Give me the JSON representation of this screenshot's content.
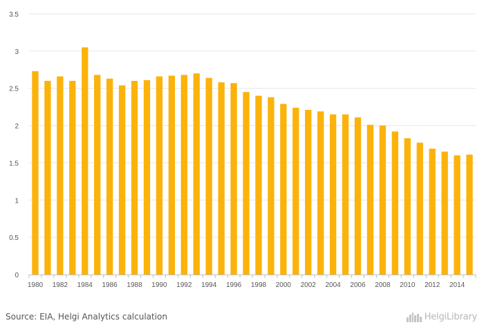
{
  "chart_data": {
    "type": "bar",
    "x": [
      1980,
      1981,
      1982,
      1983,
      1984,
      1985,
      1986,
      1987,
      1988,
      1989,
      1990,
      1991,
      1992,
      1993,
      1994,
      1995,
      1996,
      1997,
      1998,
      1999,
      2000,
      2001,
      2002,
      2003,
      2004,
      2005,
      2006,
      2007,
      2008,
      2009,
      2010,
      2011,
      2012,
      2013,
      2014,
      2015
    ],
    "values": [
      2.73,
      2.6,
      2.66,
      2.6,
      3.05,
      2.68,
      2.63,
      2.54,
      2.6,
      2.61,
      2.66,
      2.67,
      2.68,
      2.7,
      2.64,
      2.58,
      2.57,
      2.45,
      2.4,
      2.38,
      2.29,
      2.24,
      2.21,
      2.19,
      2.15,
      2.15,
      2.11,
      2.01,
      2.0,
      1.92,
      1.83,
      1.77,
      1.69,
      1.65,
      1.6,
      1.61
    ],
    "x_tick_labels": [
      "1980",
      "1982",
      "1984",
      "1986",
      "1988",
      "1990",
      "1992",
      "1994",
      "1996",
      "1998",
      "2000",
      "2002",
      "2004",
      "2006",
      "2008",
      "2010",
      "2012",
      "2014"
    ],
    "y_ticks": [
      0,
      0.5,
      1,
      1.5,
      2,
      2.5,
      3,
      3.5
    ],
    "y_tick_labels": [
      "0",
      "0.5",
      "1",
      "1.5",
      "2",
      "2.5",
      "3",
      "3.5"
    ],
    "ylim": [
      0,
      3.5
    ],
    "grid": true,
    "title": "",
    "xlabel": "",
    "ylabel": "",
    "bar_color": "#FBB30B",
    "grid_color": "#E6E6E6"
  },
  "footer": {
    "source": "Source: EIA, Helgi Analytics calculation",
    "logo_text": "HelgiLibrary"
  }
}
